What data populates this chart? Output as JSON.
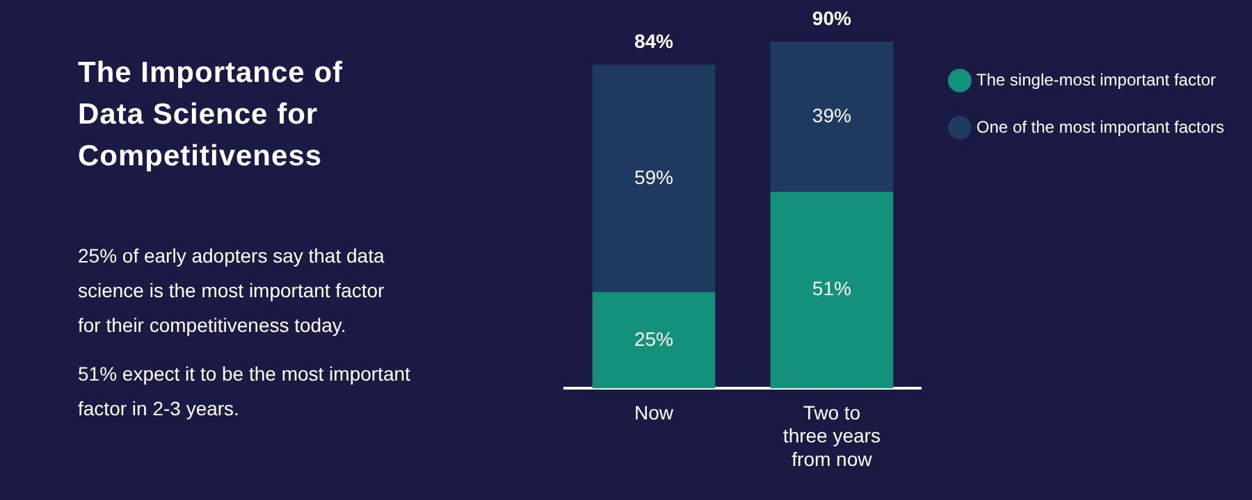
{
  "chart_data": {
    "type": "bar",
    "title": "The Importance of Data Science for Competitiveness",
    "annotations": [
      "25% of early adopters say that data science is the most important factor for their competitiveness today.",
      "51% expect it to be the most important factor in 2-3 years."
    ],
    "categories": [
      "Now",
      "Two to three years from now"
    ],
    "stacked": true,
    "legend": "top right",
    "grid": false,
    "series": [
      {
        "name": "The single-most important factor",
        "color": "#13917b",
        "values": [
          25,
          51
        ],
        "value_labels": [
          "25%",
          "51%"
        ]
      },
      {
        "name": "One of the most important factors",
        "color": "#1f3a60",
        "values": [
          59,
          39
        ],
        "value_labels": [
          "59%",
          "39%"
        ]
      }
    ],
    "totals": [
      "84%",
      "90%"
    ]
  }
}
